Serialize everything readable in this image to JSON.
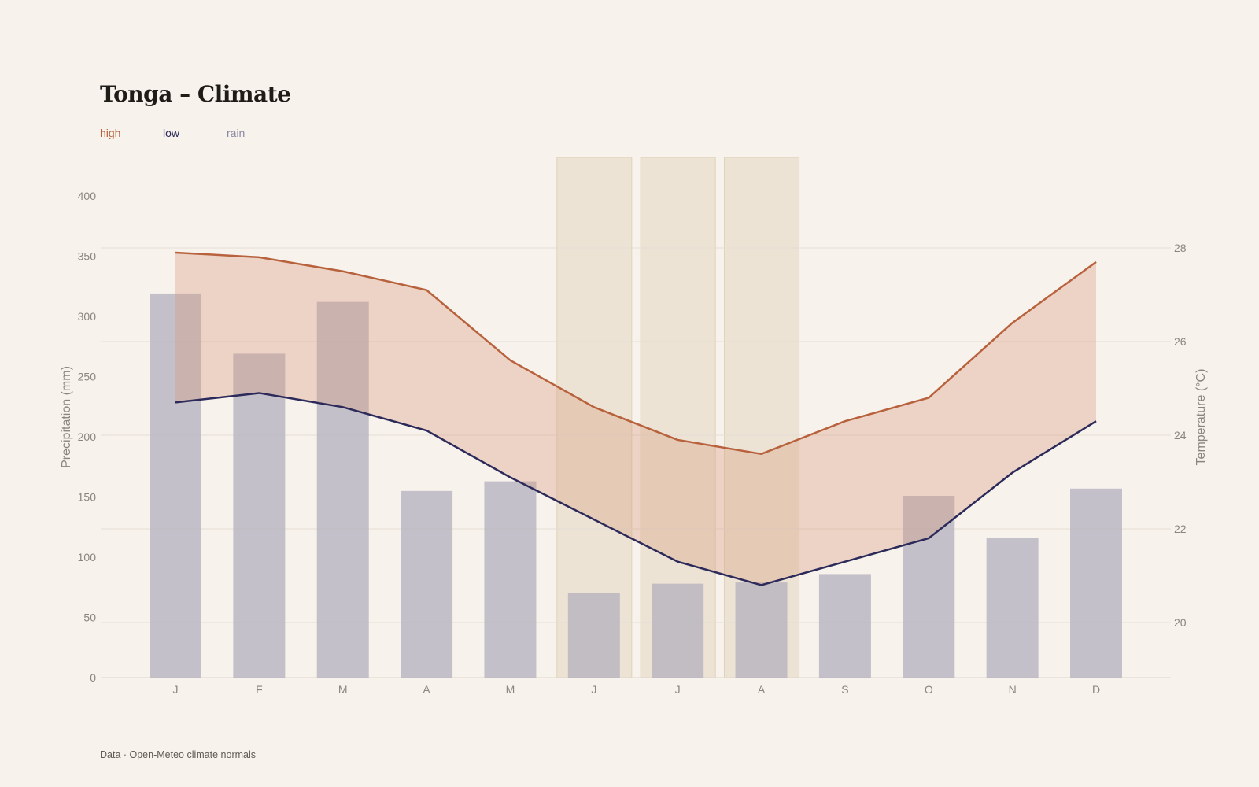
{
  "title": "Tonga – Climate",
  "legend": [
    {
      "key": "high",
      "label": "high",
      "color": "#b8623d"
    },
    {
      "key": "low",
      "label": "low",
      "color": "#2c2a5a"
    },
    {
      "key": "rain",
      "label": "rain",
      "color": "#8b88a3"
    }
  ],
  "footer": "Data · Open-Meteo climate normals",
  "chart_data": {
    "type": "bar+line",
    "categories": [
      "J",
      "F",
      "M",
      "A",
      "M",
      "J",
      "J",
      "A",
      "S",
      "O",
      "N",
      "D"
    ],
    "highlight_categories": [
      5,
      6,
      7
    ],
    "series": [
      {
        "name": "rain",
        "type": "bar",
        "axis": "left",
        "values": [
          319,
          269,
          312,
          155,
          163,
          70,
          78,
          79,
          86,
          151,
          116,
          157
        ]
      },
      {
        "name": "high",
        "type": "line",
        "axis": "right",
        "values": [
          27.9,
          27.8,
          27.5,
          27.1,
          25.6,
          24.6,
          23.9,
          23.6,
          24.3,
          24.8,
          26.4,
          27.7
        ]
      },
      {
        "name": "low",
        "type": "line",
        "axis": "right",
        "values": [
          24.7,
          24.9,
          24.6,
          24.1,
          23.1,
          22.2,
          21.3,
          20.8,
          21.3,
          21.8,
          23.2,
          24.3
        ]
      }
    ],
    "y_left": {
      "label": "Precipitation (mm)",
      "min": 0,
      "max": 400,
      "ticks": [
        0,
        50,
        100,
        150,
        200,
        250,
        300,
        350,
        400
      ]
    },
    "y_right": {
      "label": "Temperature (°C)",
      "min": 18.8,
      "max": 28.8,
      "ticks": [
        20,
        22,
        24,
        26,
        28
      ]
    },
    "colors": {
      "rain": "#b3afbe",
      "high": "#b8623d",
      "low": "#2c2a5a",
      "band": "#d69a7e",
      "highlight": "#e6d9c4",
      "grid": "#e4ddd3"
    }
  }
}
